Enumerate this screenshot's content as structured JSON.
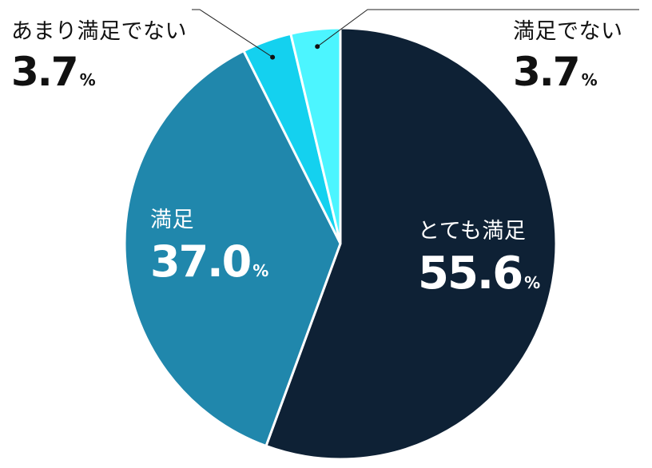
{
  "chart_data": {
    "type": "pie",
    "start_angle": "12 o'clock",
    "direction": "clockwise",
    "slices": [
      {
        "label": "とても満足",
        "value": 55.6,
        "color": "#0e2135"
      },
      {
        "label": "満足",
        "value": 37.0,
        "color": "#2087ac"
      },
      {
        "label": "あまり満足でない",
        "value": 3.7,
        "color": "#14d1ef"
      },
      {
        "label": "満足でない",
        "value": 3.7,
        "color": "#4cf5ff"
      }
    ],
    "display_values": [
      "55.6",
      "37.0",
      "3.7",
      "3.7"
    ],
    "unit": "%"
  }
}
